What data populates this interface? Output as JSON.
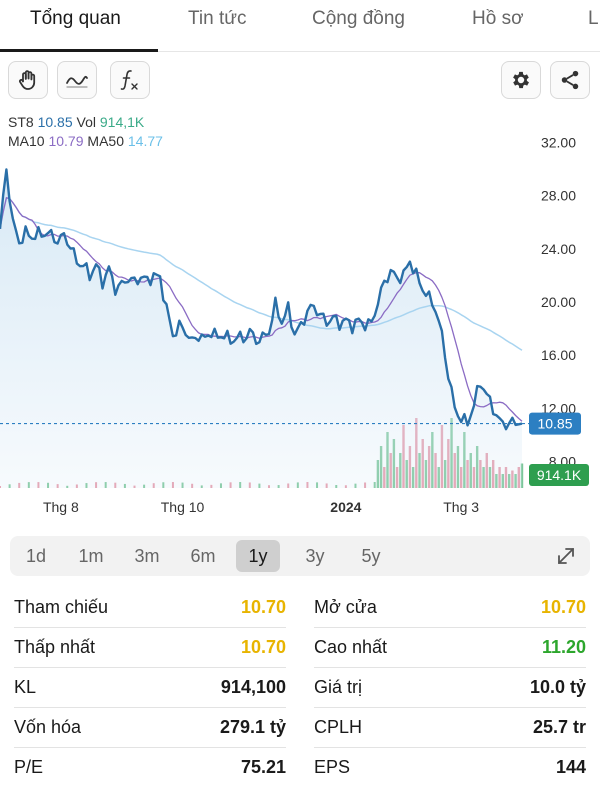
{
  "tabs": [
    {
      "label": "Tổng quan",
      "active": true
    },
    {
      "label": "Tin tức",
      "active": false
    },
    {
      "label": "Cộng đồng",
      "active": false
    },
    {
      "label": "Hồ sơ",
      "active": false
    },
    {
      "label": "L",
      "active": false
    }
  ],
  "toolbar": {
    "left_icons": [
      "hand-icon",
      "wave-icon",
      "function-icon"
    ],
    "right_icons": [
      "gear-icon",
      "share-icon"
    ]
  },
  "chart_data": {
    "type": "line",
    "ticker": "ST8",
    "price_value": "10.85",
    "vol_label": "Vol",
    "vol_value": "914,1K",
    "ma10_label": "MA10",
    "ma10_value": "10.79",
    "ma50_label": "MA50",
    "ma50_value": "14.77",
    "y_ticks": [
      "32.00",
      "28.00",
      "24.00",
      "20.00",
      "16.00",
      "12.00",
      "8.00"
    ],
    "y_tick_values": [
      32,
      28,
      24,
      20,
      16,
      12,
      8
    ],
    "ylim": [
      6,
      34
    ],
    "x_labels": [
      {
        "label": "Thg 8",
        "at": 19,
        "bold": false
      },
      {
        "label": "Thg 10",
        "at": 57,
        "bold": false
      },
      {
        "label": "2024",
        "at": 108,
        "bold": true
      },
      {
        "label": "Thg 3",
        "at": 144,
        "bold": false
      }
    ],
    "x_count": 160,
    "price_badge": "10.85",
    "volume_badge": "914.1K",
    "current_price": 10.85,
    "price_anchors": [
      [
        0,
        25.5
      ],
      [
        2,
        30.0
      ],
      [
        4,
        26.0
      ],
      [
        6,
        24.5
      ],
      [
        8,
        25.2
      ],
      [
        10,
        24.9
      ],
      [
        12,
        25.1
      ],
      [
        15,
        25.2
      ],
      [
        18,
        24.6
      ],
      [
        20,
        25.0
      ],
      [
        22,
        24.2
      ],
      [
        24,
        23.0
      ],
      [
        26,
        22.8
      ],
      [
        28,
        22.0
      ],
      [
        30,
        22.8
      ],
      [
        32,
        21.5
      ],
      [
        34,
        22.5
      ],
      [
        36,
        21.0
      ],
      [
        38,
        21.3
      ],
      [
        40,
        21.8
      ],
      [
        42,
        21.5
      ],
      [
        44,
        21.9
      ],
      [
        46,
        21.6
      ],
      [
        48,
        22.0
      ],
      [
        50,
        21.8
      ],
      [
        52,
        19.5
      ],
      [
        54,
        17.5
      ],
      [
        56,
        18.2
      ],
      [
        58,
        17.8
      ],
      [
        60,
        17.0
      ],
      [
        62,
        17.5
      ],
      [
        64,
        17.2
      ],
      [
        66,
        17.8
      ],
      [
        68,
        17.3
      ],
      [
        70,
        17.6
      ],
      [
        72,
        17.0
      ],
      [
        74,
        17.4
      ],
      [
        76,
        17.2
      ],
      [
        78,
        17.8
      ],
      [
        80,
        17.1
      ],
      [
        82,
        17.3
      ],
      [
        84,
        17.8
      ],
      [
        86,
        19.8
      ],
      [
        88,
        18.5
      ],
      [
        90,
        19.5
      ],
      [
        92,
        17.6
      ],
      [
        94,
        18.2
      ],
      [
        96,
        19.3
      ],
      [
        98,
        19.7
      ],
      [
        100,
        19.0
      ],
      [
        102,
        18.5
      ],
      [
        104,
        18.8
      ],
      [
        106,
        18.4
      ],
      [
        108,
        18.6
      ],
      [
        110,
        18.2
      ],
      [
        112,
        18.6
      ],
      [
        114,
        18.3
      ],
      [
        116,
        18.4
      ],
      [
        118,
        20.0
      ],
      [
        120,
        21.5
      ],
      [
        122,
        22.3
      ],
      [
        124,
        21.8
      ],
      [
        126,
        22.0
      ],
      [
        128,
        23.1
      ],
      [
        130,
        22.0
      ],
      [
        132,
        21.0
      ],
      [
        134,
        20.3
      ],
      [
        136,
        19.5
      ],
      [
        138,
        17.5
      ],
      [
        140,
        14.5
      ],
      [
        142,
        12.0
      ],
      [
        144,
        11.2
      ],
      [
        146,
        10.9
      ],
      [
        148,
        12.3
      ],
      [
        150,
        14.0
      ],
      [
        152,
        13.0
      ],
      [
        154,
        12.0
      ],
      [
        156,
        11.0
      ],
      [
        158,
        10.8
      ],
      [
        160,
        10.9
      ],
      [
        162,
        11.0
      ],
      [
        163,
        10.85
      ]
    ],
    "volume_bars": [
      [
        118,
        0.4,
        "up"
      ],
      [
        119,
        0.6,
        "up"
      ],
      [
        120,
        0.3,
        "down"
      ],
      [
        121,
        0.8,
        "up"
      ],
      [
        122,
        0.5,
        "down"
      ],
      [
        123,
        0.7,
        "up"
      ],
      [
        124,
        0.3,
        "down"
      ],
      [
        125,
        0.5,
        "up"
      ],
      [
        126,
        0.9,
        "down"
      ],
      [
        127,
        0.4,
        "up"
      ],
      [
        128,
        0.6,
        "down"
      ],
      [
        129,
        0.3,
        "up"
      ],
      [
        130,
        1.0,
        "down"
      ],
      [
        131,
        0.5,
        "up"
      ],
      [
        132,
        0.7,
        "down"
      ],
      [
        133,
        0.4,
        "up"
      ],
      [
        134,
        0.6,
        "down"
      ],
      [
        135,
        0.8,
        "up"
      ],
      [
        136,
        0.5,
        "down"
      ],
      [
        137,
        0.3,
        "up"
      ],
      [
        138,
        0.9,
        "down"
      ],
      [
        139,
        0.4,
        "up"
      ],
      [
        140,
        0.7,
        "down"
      ],
      [
        141,
        1.0,
        "up"
      ],
      [
        142,
        0.5,
        "down"
      ],
      [
        143,
        0.6,
        "up"
      ],
      [
        144,
        0.3,
        "down"
      ],
      [
        145,
        0.8,
        "up"
      ],
      [
        146,
        0.4,
        "down"
      ],
      [
        147,
        0.5,
        "up"
      ],
      [
        148,
        0.3,
        "down"
      ],
      [
        149,
        0.6,
        "up"
      ],
      [
        150,
        0.4,
        "down"
      ],
      [
        151,
        0.3,
        "up"
      ],
      [
        152,
        0.5,
        "down"
      ],
      [
        153,
        0.3,
        "up"
      ],
      [
        154,
        0.4,
        "down"
      ],
      [
        155,
        0.2,
        "up"
      ],
      [
        156,
        0.3,
        "down"
      ],
      [
        157,
        0.2,
        "up"
      ],
      [
        158,
        0.3,
        "down"
      ],
      [
        159,
        0.2,
        "up"
      ],
      [
        160,
        0.25,
        "down"
      ],
      [
        161,
        0.2,
        "up"
      ],
      [
        162,
        0.3,
        "down"
      ],
      [
        163,
        0.35,
        "up"
      ]
    ]
  },
  "range_selector": {
    "options": [
      "1d",
      "1m",
      "3m",
      "6m",
      "1y",
      "3y",
      "5y"
    ],
    "selected": "1y"
  },
  "stats": {
    "left": [
      {
        "label": "Tham chiếu",
        "value": "10.70",
        "color": "yellow"
      },
      {
        "label": "Thấp nhất",
        "value": "10.70",
        "color": "yellow"
      },
      {
        "label": "KL",
        "value": "914,100",
        "color": "default"
      },
      {
        "label": "Vốn hóa",
        "value": "279.1 tỷ",
        "color": "default"
      },
      {
        "label": "P/E",
        "value": "75.21",
        "color": "default"
      }
    ],
    "right": [
      {
        "label": "Mở cửa",
        "value": "10.70",
        "color": "yellow"
      },
      {
        "label": "Cao nhất",
        "value": "11.20",
        "color": "green"
      },
      {
        "label": "Giá trị",
        "value": "10.0 tỷ",
        "color": "default"
      },
      {
        "label": "CPLH",
        "value": "25.7 tr",
        "color": "default"
      },
      {
        "label": "EPS",
        "value": "144",
        "color": "default"
      }
    ]
  },
  "colors": {
    "price_line": "#2a6fa8",
    "ma10_line": "#8b6cc4",
    "ma50_line": "#a8d4f0",
    "area_fill": "#d6e8f5",
    "price_badge_bg": "#2c7fc2",
    "volume_badge_bg": "#2e9e4f",
    "vol_up": "#7cc79a",
    "vol_down": "#e79aaa",
    "ticker_value": "#2a6fa8",
    "vol_value": "#3aaa88",
    "ma10_value": "#8b6cc4",
    "ma50_value": "#6cc0e8"
  }
}
